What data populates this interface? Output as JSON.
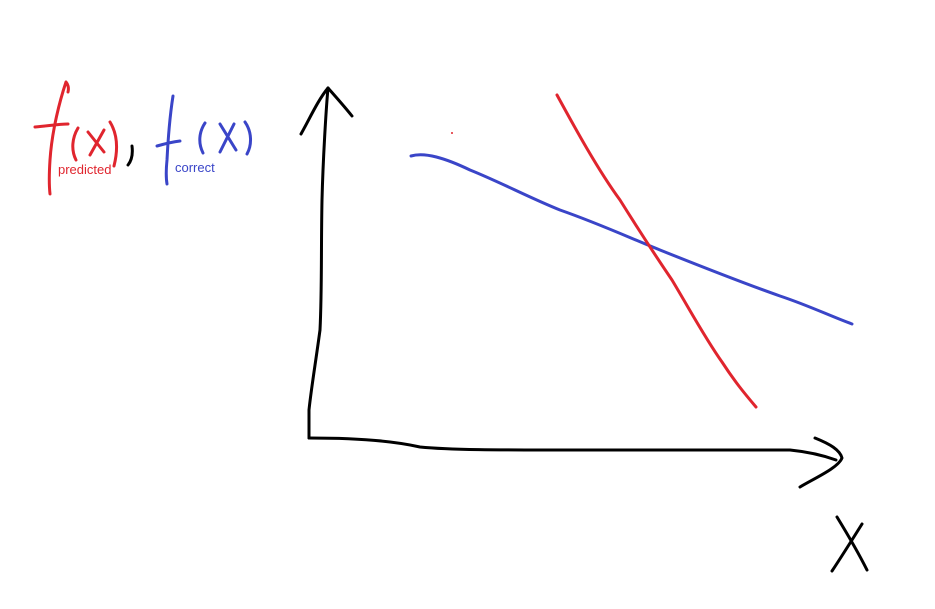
{
  "legend": {
    "predicted": {
      "glyph": "f",
      "argument": "(x)",
      "subscript": "predicted",
      "color": "#e0252e"
    },
    "separator": ",",
    "correct": {
      "glyph": "f",
      "argument": "(x)",
      "subscript": "correct",
      "color": "#3a45c8"
    }
  },
  "axes": {
    "color": "#000000",
    "x_label": "X"
  },
  "icons": {
    "y_axis_arrow": "arrow-up-icon",
    "x_axis_arrow": "arrow-right-icon"
  }
}
